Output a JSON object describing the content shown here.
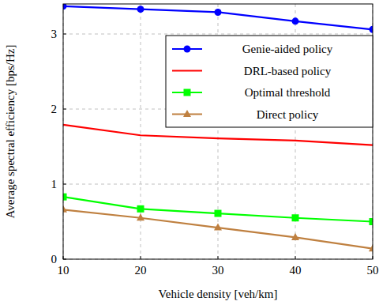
{
  "chart_data": {
    "type": "line",
    "x_label": "Vehicle density [veh/km]",
    "y_label": "Average spectral efficiency [bps/Hz]",
    "x": [
      10,
      20,
      30,
      40,
      50
    ],
    "series": [
      {
        "name": "Genie-aided policy",
        "color": "#0000ff",
        "marker": "circle",
        "values": [
          3.37,
          3.33,
          3.29,
          3.17,
          3.06
        ]
      },
      {
        "name": "DRL-based policy",
        "color": "#ff0000",
        "marker": "none",
        "values": [
          1.79,
          1.65,
          1.61,
          1.58,
          1.52
        ]
      },
      {
        "name": "Optimal threshold",
        "color": "#00ff00",
        "marker": "square",
        "values": [
          0.83,
          0.67,
          0.61,
          0.55,
          0.5
        ]
      },
      {
        "name": "Direct policy",
        "color": "#bf8040",
        "marker": "triangle",
        "values": [
          0.66,
          0.55,
          0.42,
          0.29,
          0.14
        ]
      }
    ],
    "xlim": [
      10,
      50
    ],
    "xticks": [
      10,
      20,
      30,
      40,
      50
    ],
    "ylim": [
      0,
      3.4
    ],
    "yticks": [
      0,
      1,
      2,
      3
    ],
    "grid": true,
    "legend": "upper-right"
  }
}
